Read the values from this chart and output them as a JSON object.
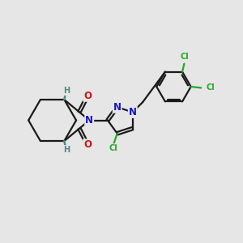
{
  "bg_color": "#e6e6e6",
  "bond_color": "#1a1a1a",
  "bond_width": 1.6,
  "dbo": 0.06,
  "atom_colors": {
    "N": "#1515cc",
    "O": "#cc1515",
    "Cl": "#22aa22",
    "H": "#4a8a8a"
  },
  "afs": 8.5,
  "sfs": 7.0
}
